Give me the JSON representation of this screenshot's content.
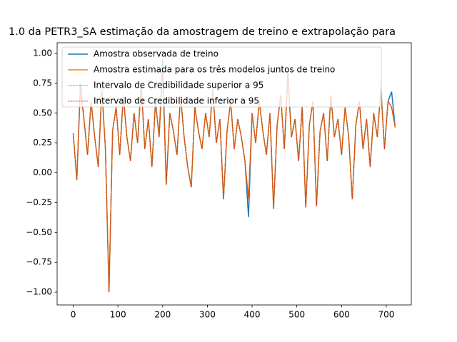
{
  "chart_data": {
    "type": "line",
    "title": "1.0 da PETR3_SA estimação da amostragem de treino e extrapolação para",
    "x": [
      0,
      8,
      16,
      24,
      32,
      40,
      48,
      56,
      64,
      72,
      80,
      88,
      96,
      104,
      112,
      120,
      128,
      136,
      144,
      152,
      160,
      168,
      176,
      184,
      192,
      200,
      208,
      216,
      224,
      232,
      240,
      248,
      256,
      264,
      272,
      280,
      288,
      296,
      304,
      312,
      320,
      328,
      336,
      344,
      352,
      360,
      368,
      376,
      384,
      392,
      400,
      408,
      416,
      424,
      432,
      440,
      448,
      456,
      464,
      472,
      480,
      488,
      496,
      504,
      512,
      520,
      528,
      536,
      544,
      552,
      560,
      568,
      576,
      584,
      592,
      600,
      608,
      616,
      624,
      632,
      640,
      648,
      656,
      664,
      672,
      680,
      688,
      696,
      704,
      712,
      720
    ],
    "series": [
      {
        "name": "Amostra observada de treino",
        "color": "#1f77b4",
        "dash": "solid",
        "width": 1.5,
        "values": [
          0.33,
          -0.06,
          0.75,
          0.45,
          0.15,
          0.6,
          0.3,
          0.05,
          0.7,
          0.2,
          -1.0,
          0.35,
          0.55,
          0.15,
          0.65,
          0.3,
          0.1,
          0.5,
          0.25,
          0.75,
          0.2,
          0.45,
          0.05,
          0.6,
          0.3,
          0.95,
          -0.1,
          0.5,
          0.35,
          0.15,
          0.65,
          0.3,
          0.05,
          -0.12,
          0.55,
          0.35,
          0.2,
          0.5,
          0.3,
          0.7,
          0.25,
          0.45,
          -0.22,
          0.35,
          0.6,
          0.2,
          0.45,
          0.3,
          0.1,
          -0.37,
          0.5,
          0.25,
          0.6,
          0.35,
          0.15,
          0.5,
          -0.3,
          0.4,
          0.65,
          0.2,
          0.85,
          0.3,
          0.45,
          0.1,
          0.55,
          -0.29,
          0.4,
          0.6,
          -0.28,
          0.35,
          0.5,
          0.1,
          0.65,
          0.3,
          0.45,
          0.15,
          0.55,
          0.3,
          -0.22,
          0.4,
          0.6,
          0.2,
          0.45,
          0.05,
          0.5,
          0.3,
          0.72,
          0.2,
          0.6,
          0.68,
          0.38
        ]
      },
      {
        "name": "Amostra estimada para os três modelos juntos  de treino",
        "color": "#ff7f0e",
        "dash": "solid",
        "width": 1.5,
        "values": [
          0.33,
          -0.06,
          0.7,
          0.45,
          0.15,
          0.6,
          0.3,
          0.05,
          0.7,
          0.2,
          -1.0,
          0.35,
          0.55,
          0.15,
          0.65,
          0.3,
          0.1,
          0.5,
          0.25,
          0.75,
          0.2,
          0.45,
          0.05,
          0.6,
          0.3,
          0.85,
          -0.1,
          0.5,
          0.35,
          0.15,
          0.65,
          0.3,
          0.05,
          -0.12,
          0.55,
          0.35,
          0.2,
          0.5,
          0.3,
          0.7,
          0.25,
          0.45,
          -0.22,
          0.35,
          0.6,
          0.2,
          0.45,
          0.3,
          0.1,
          -0.22,
          0.5,
          0.25,
          0.6,
          0.35,
          0.15,
          0.5,
          -0.3,
          0.4,
          0.65,
          0.2,
          0.8,
          0.3,
          0.45,
          0.1,
          0.55,
          -0.29,
          0.4,
          0.6,
          -0.28,
          0.35,
          0.5,
          0.1,
          0.65,
          0.3,
          0.45,
          0.15,
          0.55,
          0.3,
          -0.22,
          0.4,
          0.6,
          0.2,
          0.45,
          0.05,
          0.5,
          0.3,
          0.7,
          0.2,
          0.6,
          0.55,
          0.38
        ]
      },
      {
        "name": "Intervalo de Credibilidade superior a 95",
        "color": "#2ca02c",
        "dash": "dashed",
        "width": 0.7,
        "values": [
          0.33,
          -0.06,
          0.7,
          0.45,
          0.15,
          0.6,
          0.3,
          0.05,
          0.7,
          0.2,
          -1.0,
          0.35,
          0.55,
          0.15,
          0.65,
          0.3,
          0.1,
          0.5,
          0.25,
          0.75,
          0.2,
          0.45,
          0.05,
          0.6,
          0.3,
          0.85,
          -0.1,
          0.5,
          0.35,
          0.15,
          0.65,
          0.3,
          0.05,
          -0.12,
          0.55,
          0.35,
          0.2,
          0.5,
          0.3,
          0.7,
          0.25,
          0.45,
          -0.22,
          0.35,
          0.6,
          0.2,
          0.45,
          0.3,
          0.1,
          -0.22,
          0.5,
          0.25,
          0.6,
          0.35,
          0.15,
          0.5,
          -0.3,
          0.4,
          0.65,
          0.2,
          0.8,
          0.3,
          0.45,
          0.1,
          0.55,
          -0.29,
          0.4,
          0.6,
          -0.28,
          0.35,
          0.5,
          0.1,
          0.65,
          0.3,
          0.45,
          0.15,
          0.55,
          0.3,
          -0.22,
          0.4,
          0.6,
          0.2,
          0.45,
          0.05,
          0.5,
          0.3,
          0.7,
          0.2,
          0.6,
          0.55,
          0.38
        ]
      },
      {
        "name": "Intervalo de Credibilidade inferior a 95",
        "color": "#d62728",
        "dash": "dashed",
        "width": 0.7,
        "values": [
          0.33,
          -0.06,
          0.7,
          0.45,
          0.15,
          0.6,
          0.3,
          0.05,
          0.7,
          0.2,
          -1.0,
          0.35,
          0.55,
          0.15,
          0.65,
          0.3,
          0.1,
          0.5,
          0.25,
          0.75,
          0.2,
          0.45,
          0.05,
          0.6,
          0.3,
          0.85,
          -0.1,
          0.5,
          0.35,
          0.15,
          0.65,
          0.3,
          0.05,
          -0.12,
          0.55,
          0.35,
          0.2,
          0.5,
          0.3,
          0.7,
          0.25,
          0.45,
          -0.22,
          0.35,
          0.6,
          0.2,
          0.45,
          0.3,
          0.1,
          -0.22,
          0.5,
          0.25,
          0.6,
          0.35,
          0.15,
          0.5,
          -0.3,
          0.4,
          0.65,
          0.2,
          0.8,
          0.3,
          0.45,
          0.1,
          0.55,
          -0.29,
          0.4,
          0.6,
          -0.28,
          0.35,
          0.5,
          0.1,
          0.65,
          0.3,
          0.45,
          0.15,
          0.55,
          0.3,
          -0.22,
          0.4,
          0.6,
          0.2,
          0.45,
          0.05,
          0.5,
          0.3,
          0.7,
          0.2,
          0.6,
          0.55,
          0.38
        ]
      }
    ],
    "xlim": [
      -36,
      756
    ],
    "xticks": [
      0,
      100,
      200,
      300,
      400,
      500,
      600,
      700
    ],
    "ylim": [
      -1.107,
      1.09
    ],
    "yticks": [
      {
        "value": -1,
        "label": "−1.00"
      },
      {
        "value": -0.75,
        "label": "−0.75"
      },
      {
        "value": -0.5,
        "label": "−0.50"
      },
      {
        "value": -0.25,
        "label": "−0.25"
      },
      {
        "value": 0,
        "label": "0.00"
      },
      {
        "value": 0.25,
        "label": "0.25"
      },
      {
        "value": 0.5,
        "label": "0.50"
      },
      {
        "value": 0.75,
        "label": "0.75"
      },
      {
        "value": 1,
        "label": "1.00"
      }
    ],
    "legend": "upper left",
    "grid": false
  }
}
